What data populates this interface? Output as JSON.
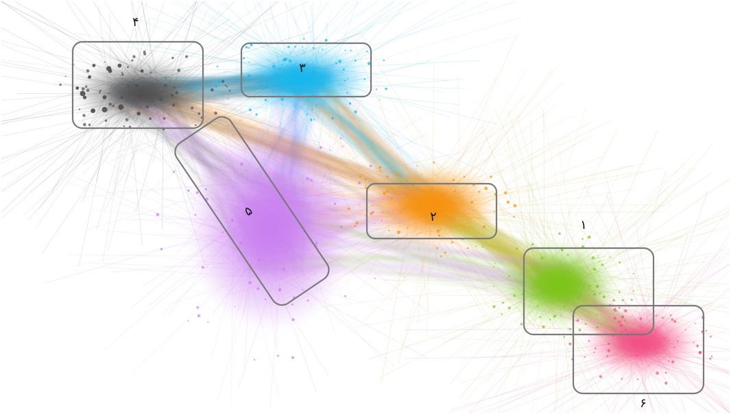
{
  "clusters": [
    {
      "id": "1",
      "label": "۱",
      "color": "#7dc41a"
    },
    {
      "id": "2",
      "label": "۲",
      "color": "#f7920f"
    },
    {
      "id": "3",
      "label": "۳",
      "color": "#16b7ee"
    },
    {
      "id": "4",
      "label": "۴",
      "color": "#4d4d4d"
    },
    {
      "id": "5",
      "label": "۵",
      "color": "#c97ff0"
    },
    {
      "id": "6",
      "label": "۶",
      "color": "#f25086"
    }
  ],
  "colors": {
    "background": "#ffffff",
    "box_stroke": "#7a7a7a",
    "label_text": "#111111"
  }
}
